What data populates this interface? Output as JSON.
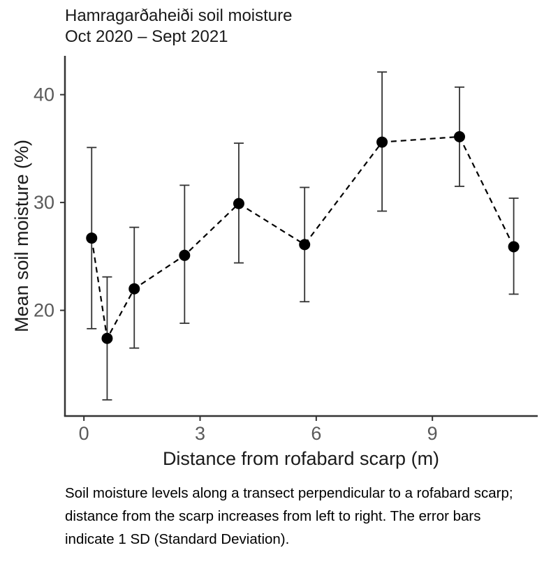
{
  "chart_data": {
    "type": "line",
    "subtype": "scatter-with-error-bars-dashed-line",
    "title": "Hamragarðaheiði soil moisture",
    "subtitle": "Oct 2020 – Sept 2021",
    "xlabel": "Distance from rofabard scarp (m)",
    "ylabel": "Mean soil moisture (%)",
    "xlim": [
      -0.49,
      11.72
    ],
    "ylim": [
      10.2,
      43.6
    ],
    "xticks": [
      0,
      3,
      6,
      9
    ],
    "yticks": [
      20,
      30,
      40
    ],
    "grid": false,
    "legend_position": "none",
    "error_bar_meaning": "1 SD",
    "points": [
      {
        "x": 0.2,
        "mean": 26.7,
        "lower": 18.3,
        "upper": 35.1
      },
      {
        "x": 0.6,
        "mean": 17.4,
        "lower": 11.7,
        "upper": 23.1
      },
      {
        "x": 1.3,
        "mean": 22.0,
        "lower": 16.5,
        "upper": 27.7
      },
      {
        "x": 2.6,
        "mean": 25.1,
        "lower": 18.8,
        "upper": 31.6
      },
      {
        "x": 4.0,
        "mean": 29.9,
        "lower": 24.4,
        "upper": 35.5
      },
      {
        "x": 5.7,
        "mean": 26.1,
        "lower": 20.8,
        "upper": 31.4
      },
      {
        "x": 7.7,
        "mean": 35.6,
        "lower": 29.2,
        "upper": 42.1
      },
      {
        "x": 9.7,
        "mean": 36.1,
        "lower": 31.5,
        "upper": 40.7
      },
      {
        "x": 11.1,
        "mean": 25.9,
        "lower": 21.5,
        "upper": 30.4
      }
    ],
    "colors": {
      "point": "#000000",
      "line": "#000000",
      "errorbar": "#333333",
      "axis": "#333333",
      "tick_label": "#595959"
    }
  },
  "caption": {
    "lines": [
      "Soil moisture levels along a transect perpendicular to a rofabard scarp;",
      "distance from the scarp increases from left to right. The error bars",
      "indicate 1 SD (Standard Deviation)."
    ]
  }
}
